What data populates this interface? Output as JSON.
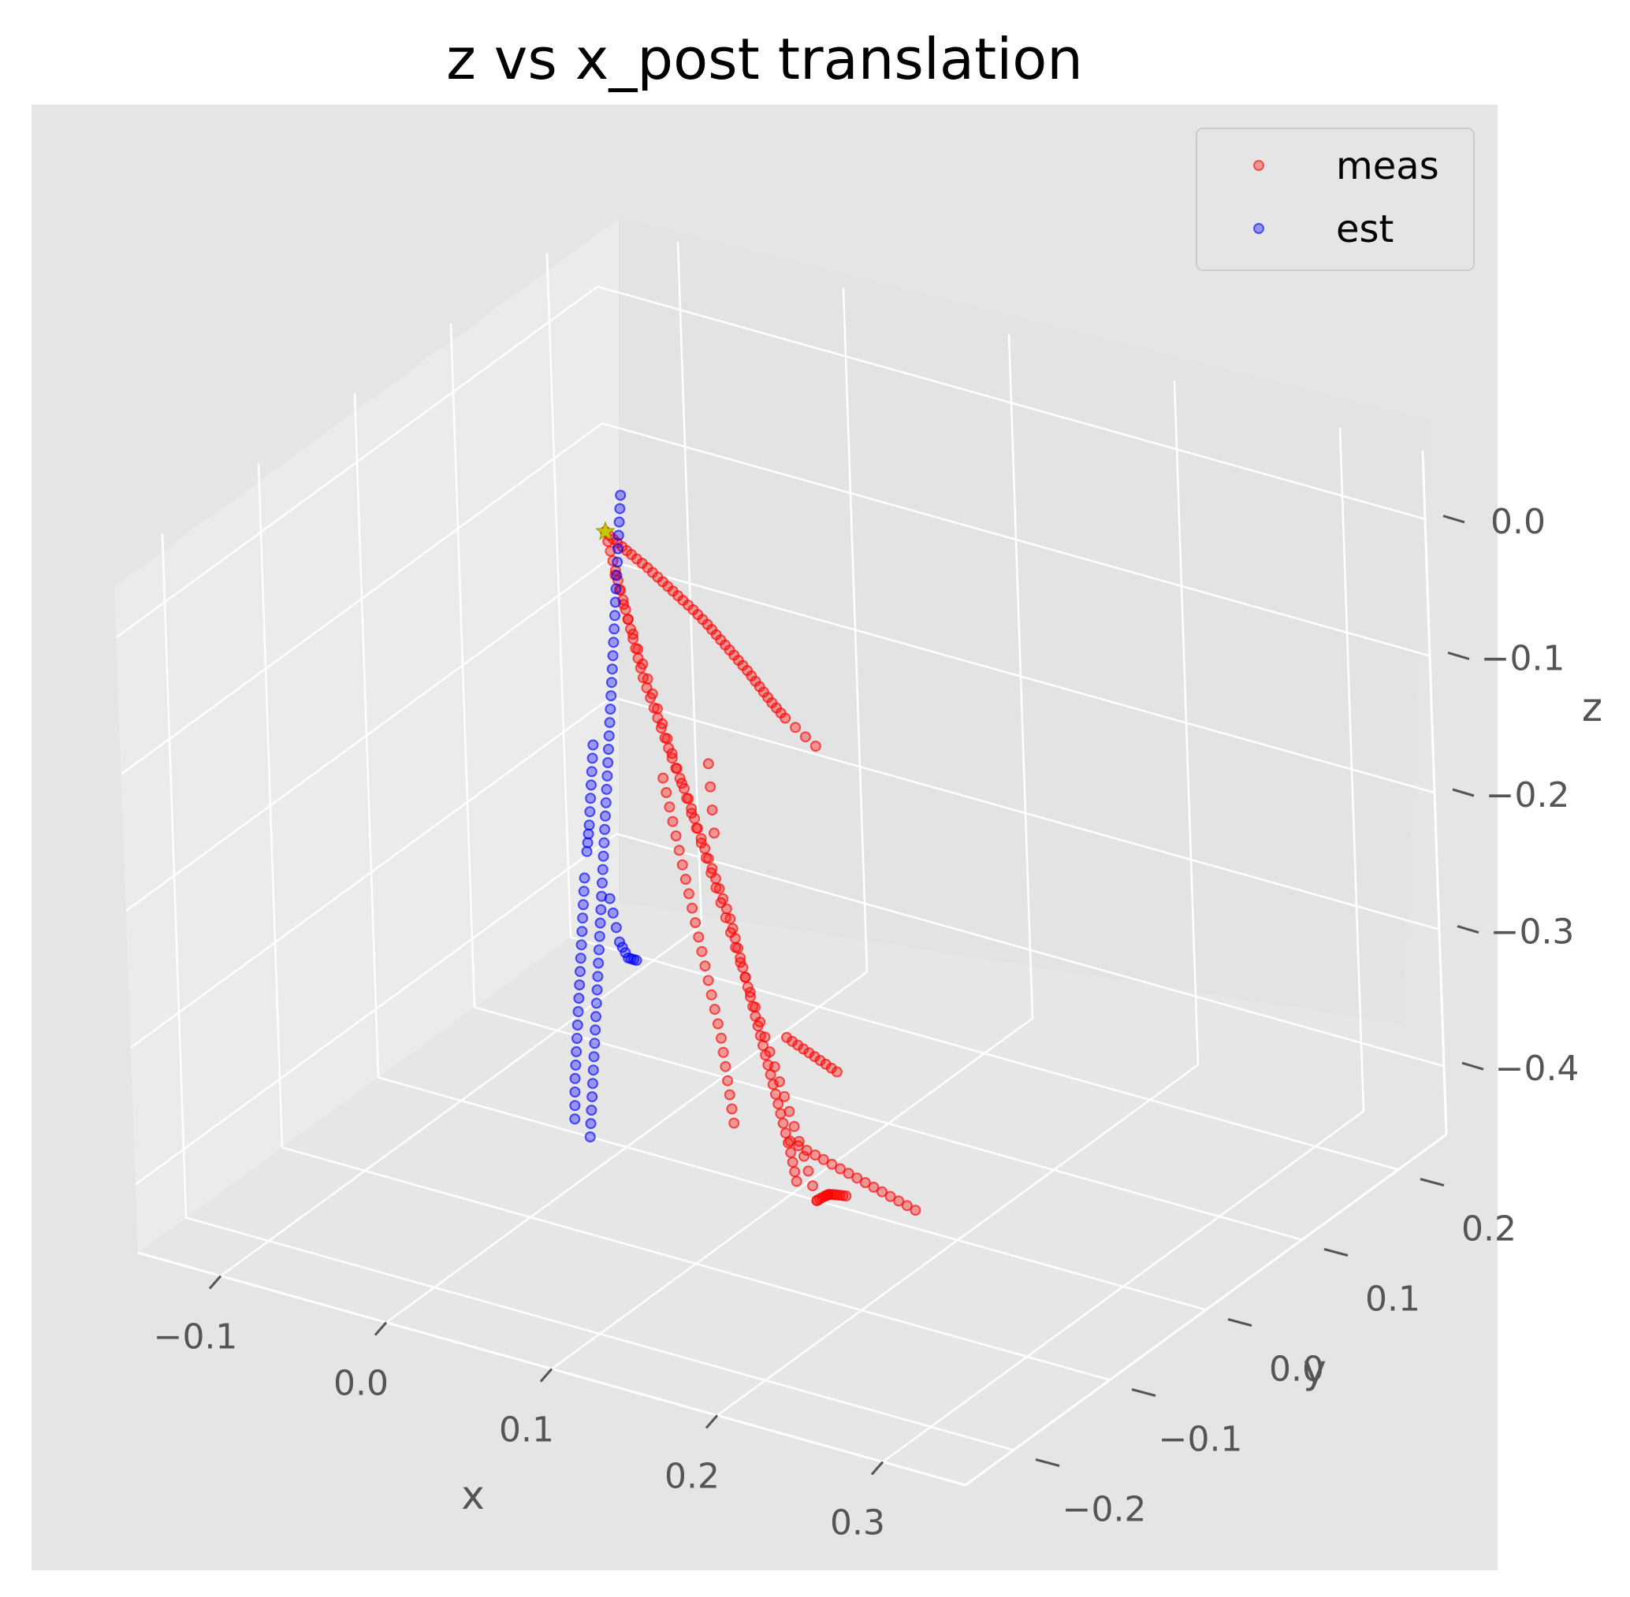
{
  "chart_data": {
    "type": "scatter",
    "projection": "3d",
    "style": "ggplot",
    "title": "z vs x_post translation",
    "xlabel": "x",
    "ylabel": "y",
    "zlabel": "z",
    "xlim": [
      -0.15,
      0.35
    ],
    "ylim": [
      -0.25,
      0.25
    ],
    "zlim": [
      -0.45,
      0.05
    ],
    "x_ticks": [
      "−0.1",
      "0.0",
      "0.1",
      "0.2",
      "0.3"
    ],
    "y_ticks": [
      "−0.2",
      "−0.1",
      "0.0",
      "0.1",
      "0.2"
    ],
    "z_ticks": [
      "−0.4",
      "−0.3",
      "−0.2",
      "−0.1",
      "0.0"
    ],
    "grid": true,
    "legend": {
      "position": "top-right",
      "entries": [
        "meas",
        "est"
      ]
    },
    "colors": {
      "meas": "#ff0000",
      "est": "#0000ff",
      "pane": "#e5e5e5",
      "grid": "#ffffff",
      "start_marker": "#c8c800"
    },
    "start_marker": {
      "x": 0.0,
      "y": 0.0,
      "z": 0.0
    },
    "series": [
      {
        "name": "meas",
        "segments": [
          [
            [
              0.0,
              0.0,
              0.0
            ],
            [
              0.012,
              -0.008,
              0.0
            ],
            [
              0.025,
              -0.016,
              0.0
            ],
            [
              0.04,
              -0.025,
              0.0
            ],
            [
              0.055,
              -0.035,
              0.0
            ],
            [
              0.07,
              -0.045,
              0.0
            ],
            [
              0.085,
              -0.055,
              0.0
            ],
            [
              0.1,
              -0.066,
              0.0
            ],
            [
              0.115,
              -0.078,
              0.0
            ],
            [
              0.13,
              -0.09,
              0.0
            ],
            [
              0.145,
              -0.102,
              0.0
            ],
            [
              0.16,
              -0.115,
              0.0
            ],
            [
              0.175,
              -0.128,
              0.0
            ],
            [
              0.19,
              -0.14,
              0.0
            ],
            [
              0.22,
              -0.16,
              0.0
            ]
          ],
          [
            [
              0.0,
              0.0,
              0.0
            ],
            [
              0.004,
              0.0,
              -0.02
            ],
            [
              0.008,
              0.0,
              -0.04
            ],
            [
              0.012,
              0.0,
              -0.06
            ],
            [
              0.016,
              0.0,
              -0.08
            ],
            [
              0.02,
              0.0,
              -0.1
            ],
            [
              0.026,
              0.0,
              -0.12
            ],
            [
              0.032,
              0.0,
              -0.14
            ],
            [
              0.038,
              0.0,
              -0.16
            ],
            [
              0.045,
              0.0,
              -0.18
            ],
            [
              0.05,
              0.0,
              -0.2
            ],
            [
              0.056,
              0.0,
              -0.22
            ],
            [
              0.062,
              0.0,
              -0.24
            ],
            [
              0.068,
              0.0,
              -0.26
            ],
            [
              0.072,
              0.0,
              -0.28
            ],
            [
              0.076,
              0.0,
              -0.3
            ],
            [
              0.08,
              0.0,
              -0.32
            ],
            [
              0.084,
              0.0,
              -0.34
            ],
            [
              0.088,
              0.0,
              -0.36
            ],
            [
              0.092,
              0.0,
              -0.38
            ],
            [
              0.096,
              0.0,
              -0.4
            ],
            [
              0.1,
              0.0,
              -0.42
            ],
            [
              0.103,
              0.0,
              -0.44
            ]
          ],
          [
            [
              0.005,
              0.0,
              -0.03
            ],
            [
              0.012,
              0.0,
              -0.06
            ],
            [
              0.02,
              0.0,
              -0.09
            ],
            [
              0.028,
              0.0,
              -0.12
            ],
            [
              0.036,
              0.0,
              -0.15
            ],
            [
              0.044,
              0.0,
              -0.18
            ],
            [
              0.052,
              0.0,
              -0.21
            ],
            [
              0.06,
              0.0,
              -0.24
            ],
            [
              0.068,
              0.0,
              -0.27
            ],
            [
              0.076,
              0.0,
              -0.3
            ],
            [
              0.084,
              0.0,
              -0.33
            ],
            [
              0.092,
              0.0,
              -0.36
            ],
            [
              0.1,
              0.0,
              -0.39
            ],
            [
              0.108,
              0.0,
              -0.42
            ],
            [
              0.115,
              0.0,
              -0.45
            ]
          ],
          [
            [
              0.03,
              0.0,
              -0.17
            ],
            [
              0.035,
              0.0,
              -0.2
            ],
            [
              0.04,
              0.0,
              -0.23
            ],
            [
              0.045,
              0.0,
              -0.26
            ],
            [
              0.05,
              0.0,
              -0.29
            ],
            [
              0.055,
              0.0,
              -0.32
            ],
            [
              0.06,
              0.0,
              -0.35
            ],
            [
              0.063,
              0.0,
              -0.38
            ],
            [
              0.066,
              0.0,
              -0.41
            ]
          ],
          [
            [
              0.115,
              0.0,
              -0.45
            ],
            [
              0.12,
              0.0,
              -0.445
            ],
            [
              0.125,
              -0.004,
              -0.44
            ],
            [
              0.132,
              -0.008,
              -0.436
            ],
            [
              0.14,
              -0.012,
              -0.432
            ]
          ],
          [
            [
              0.13,
              -0.05,
              -0.3
            ],
            [
              0.14,
              -0.05,
              -0.305
            ],
            [
              0.15,
              -0.05,
              -0.31
            ],
            [
              0.16,
              -0.05,
              -0.315
            ]
          ],
          [
            [
              0.16,
              -0.1,
              -0.34
            ],
            [
              0.175,
              -0.1,
              -0.345
            ],
            [
              0.19,
              -0.1,
              -0.35
            ],
            [
              0.205,
              -0.1,
              -0.355
            ],
            [
              0.22,
              -0.1,
              -0.36
            ],
            [
              0.235,
              -0.1,
              -0.365
            ]
          ],
          [
            [
              0.06,
              0.0,
              -0.2
            ],
            [
              0.058,
              0.0,
              -0.15
            ]
          ]
        ]
      },
      {
        "name": "est",
        "segments": [
          [
            [
              0.01,
              0.0,
              0.03
            ],
            [
              0.008,
              0.0,
              0.0
            ],
            [
              0.006,
              0.0,
              -0.03
            ],
            [
              0.004,
              0.0,
              -0.06
            ],
            [
              0.002,
              0.0,
              -0.09
            ],
            [
              0.0,
              0.0,
              -0.12
            ],
            [
              -0.002,
              0.0,
              -0.15
            ],
            [
              -0.004,
              0.0,
              -0.18
            ],
            [
              -0.006,
              0.0,
              -0.21
            ],
            [
              -0.008,
              0.0,
              -0.24
            ],
            [
              -0.01,
              0.0,
              -0.27
            ],
            [
              -0.012,
              0.0,
              -0.3
            ],
            [
              -0.014,
              0.0,
              -0.33
            ],
            [
              -0.016,
              0.0,
              -0.36
            ],
            [
              -0.018,
              0.0,
              -0.39
            ],
            [
              -0.02,
              0.0,
              -0.42
            ],
            [
              -0.022,
              0.0,
              -0.45
            ]
          ],
          [
            [
              -0.02,
              0.0,
              -0.26
            ],
            [
              -0.022,
              0.0,
              -0.29
            ],
            [
              -0.024,
              0.0,
              -0.32
            ],
            [
              -0.026,
              0.0,
              -0.35
            ],
            [
              -0.028,
              0.0,
              -0.38
            ],
            [
              -0.03,
              0.0,
              -0.41
            ],
            [
              -0.031,
              0.0,
              -0.44
            ]
          ],
          [
            [
              -0.005,
              0.0,
              -0.27
            ],
            [
              0.0,
              0.0,
              -0.3
            ],
            [
              0.005,
              0.0,
              -0.31
            ],
            [
              0.01,
              0.0,
              -0.31
            ]
          ],
          [
            [
              -0.012,
              0.0,
              -0.16
            ],
            [
              -0.014,
              0.0,
              -0.19
            ],
            [
              -0.016,
              0.0,
              -0.22
            ],
            [
              -0.018,
              0.0,
              -0.24
            ]
          ]
        ]
      }
    ]
  }
}
